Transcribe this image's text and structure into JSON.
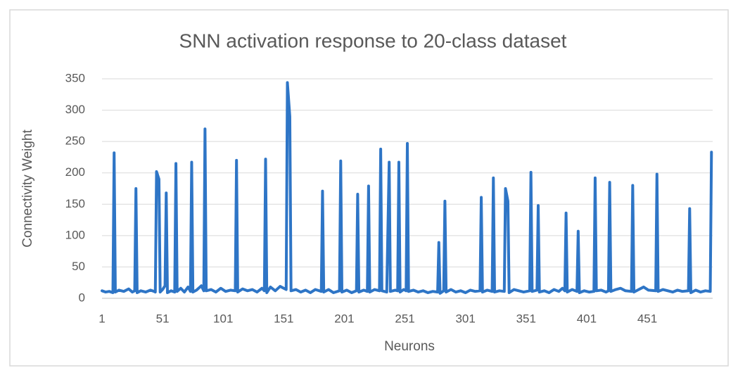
{
  "chart_data": {
    "type": "line",
    "title": "SNN activation response to 20-class dataset",
    "xlabel": "Neurons",
    "ylabel": "Connectivity Weight",
    "xlim": [
      1,
      505
    ],
    "ylim": [
      0,
      350
    ],
    "xticks": [
      1,
      51,
      101,
      151,
      201,
      251,
      301,
      351,
      401,
      451
    ],
    "yticks": [
      0,
      50,
      100,
      150,
      200,
      250,
      300,
      350
    ],
    "grid": true,
    "series": [
      {
        "name": "Connectivity Weight",
        "color": "#2e75c6",
        "x": [
          1,
          4,
          7,
          10,
          11,
          12,
          15,
          19,
          23,
          26,
          28,
          29,
          30,
          33,
          37,
          41,
          44,
          45,
          46,
          48,
          49,
          51,
          53,
          54,
          55,
          58,
          61,
          62,
          63,
          66,
          69,
          72,
          74,
          75,
          76,
          79,
          83,
          85,
          86,
          87,
          91,
          95,
          99,
          103,
          107,
          111,
          112,
          113,
          117,
          121,
          125,
          129,
          133,
          135,
          136,
          137,
          140,
          144,
          148,
          153,
          154,
          156,
          157,
          161,
          165,
          169,
          173,
          177,
          182,
          183,
          184,
          188,
          192,
          197,
          198,
          199,
          203,
          207,
          211,
          212,
          213,
          217,
          220,
          221,
          222,
          226,
          230,
          231,
          232,
          236,
          238,
          239,
          243,
          245,
          246,
          247,
          250,
          252,
          253,
          254,
          258,
          262,
          266,
          270,
          274,
          278,
          279,
          280,
          283,
          284,
          285,
          289,
          293,
          297,
          301,
          305,
          309,
          313,
          314,
          315,
          319,
          323,
          324,
          325,
          329,
          333,
          334,
          336,
          337,
          341,
          345,
          349,
          354,
          355,
          356,
          360,
          361,
          362,
          366,
          370,
          374,
          378,
          381,
          383,
          384,
          385,
          389,
          393,
          394,
          395,
          399,
          403,
          407,
          408,
          409,
          413,
          417,
          419,
          420,
          421,
          425,
          429,
          433,
          438,
          439,
          440,
          444,
          448,
          452,
          458,
          459,
          460,
          464,
          468,
          472,
          476,
          480,
          485,
          486,
          487,
          491,
          495,
          499,
          503,
          504
        ],
        "values": [
          12,
          10,
          11,
          9,
          232,
          10,
          13,
          11,
          15,
          10,
          12,
          175,
          9,
          12,
          10,
          13,
          11,
          10,
          202,
          190,
          10,
          14,
          20,
          168,
          9,
          12,
          10,
          215,
          11,
          16,
          10,
          18,
          11,
          217,
          10,
          13,
          20,
          12,
          270,
          12,
          14,
          10,
          16,
          11,
          13,
          12,
          220,
          10,
          15,
          12,
          14,
          10,
          16,
          12,
          222,
          9,
          18,
          12,
          19,
          14,
          344,
          290,
          12,
          14,
          10,
          13,
          9,
          14,
          11,
          171,
          10,
          14,
          9,
          12,
          219,
          10,
          13,
          9,
          12,
          166,
          10,
          13,
          11,
          179,
          10,
          14,
          12,
          238,
          12,
          10,
          217,
          11,
          13,
          12,
          217,
          10,
          14,
          12,
          247,
          11,
          13,
          10,
          12,
          9,
          11,
          10,
          89,
          8,
          12,
          155,
          10,
          14,
          10,
          12,
          9,
          13,
          11,
          12,
          161,
          10,
          13,
          11,
          192,
          10,
          12,
          11,
          175,
          155,
          9,
          14,
          12,
          10,
          12,
          201,
          11,
          13,
          148,
          10,
          12,
          9,
          14,
          11,
          16,
          12,
          136,
          10,
          14,
          11,
          107,
          9,
          12,
          10,
          11,
          192,
          12,
          13,
          10,
          12,
          185,
          11,
          14,
          16,
          12,
          11,
          180,
          10,
          14,
          18,
          13,
          12,
          198,
          11,
          14,
          12,
          10,
          13,
          11,
          12,
          143,
          9,
          13,
          10,
          12,
          11,
          233
        ]
      }
    ]
  }
}
